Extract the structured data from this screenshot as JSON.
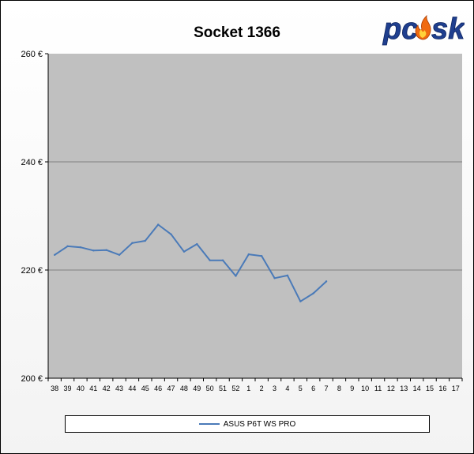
{
  "chart_data": {
    "type": "line",
    "title": "Socket 1366",
    "xlabel": "",
    "ylabel": "",
    "categories": [
      "38",
      "39",
      "40",
      "41",
      "42",
      "43",
      "44",
      "45",
      "46",
      "47",
      "48",
      "49",
      "50",
      "51",
      "52",
      "1",
      "2",
      "3",
      "4",
      "5",
      "6",
      "7",
      "8",
      "9",
      "10",
      "11",
      "12",
      "13",
      "14",
      "15",
      "16",
      "17"
    ],
    "series": [
      {
        "name": "ASUS P6T WS PRO",
        "color": "#4a7ab8",
        "values": [
          222.8,
          224.4,
          224.2,
          223.6,
          223.7,
          222.8,
          225.0,
          225.4,
          228.4,
          226.6,
          223.4,
          224.8,
          221.8,
          221.8,
          218.9,
          222.9,
          222.6,
          218.5,
          219.0,
          214.2,
          215.7,
          217.9,
          null,
          null,
          null,
          null,
          null,
          null,
          null,
          null,
          null,
          null
        ]
      }
    ],
    "ylim": [
      200,
      260
    ],
    "yticks": [
      200,
      220,
      240,
      260
    ],
    "yticklabels": [
      "200 €",
      "220 €",
      "240 €",
      "260 €"
    ],
    "grid": true,
    "legend": "bottom",
    "colors": {
      "plot_background": "#c0c0c0",
      "gridline": "#808080",
      "line": "#4a7ab8"
    }
  },
  "logo": {
    "text": "pcosk"
  }
}
